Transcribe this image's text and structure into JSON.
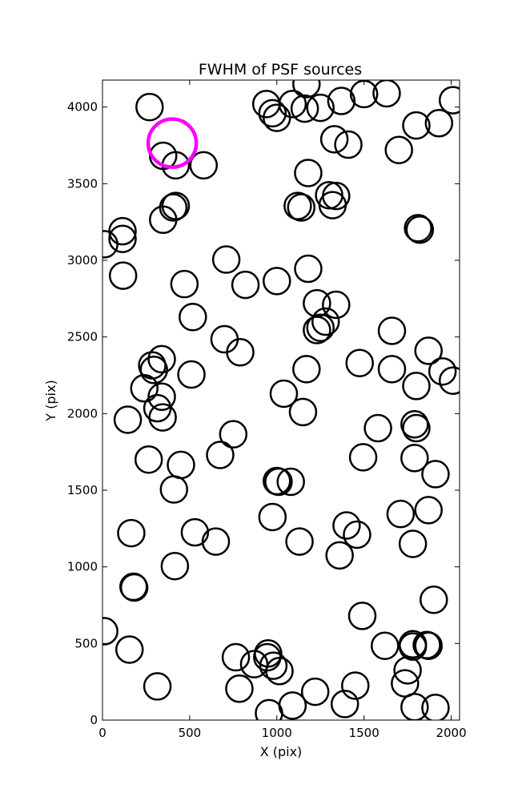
{
  "chart_data": {
    "type": "scatter",
    "title": "FWHM of PSF sources",
    "xlabel": "X (pix)",
    "ylabel": "Y (pix)",
    "xlim": [
      0,
      2048
    ],
    "ylim": [
      0,
      4176
    ],
    "x_ticks": [
      "0",
      "500",
      "1000",
      "1500",
      "2000"
    ],
    "y_ticks": [
      "0",
      "500",
      "1000",
      "1500",
      "2000",
      "2500",
      "3000",
      "3500",
      "4000"
    ],
    "grid": false,
    "marker": "open-circle",
    "colors": {
      "source": "#000000",
      "highlight": "#ff00ff"
    },
    "series": [
      {
        "style": "source",
        "points": [
          [
            270,
            4000
          ],
          [
            348,
            3682
          ],
          [
            420,
            3620
          ],
          [
            580,
            3620
          ],
          [
            420,
            3355
          ],
          [
            406,
            3345
          ],
          [
            348,
            3265
          ],
          [
            115,
            3190
          ],
          [
            115,
            3140
          ],
          [
            10,
            3105
          ],
          [
            118,
            2900
          ],
          [
            470,
            2845
          ],
          [
            518,
            2630
          ],
          [
            710,
            3005
          ],
          [
            820,
            2840
          ],
          [
            1000,
            2865
          ],
          [
            1180,
            2945
          ],
          [
            1230,
            2720
          ],
          [
            1340,
            2710
          ],
          [
            1280,
            2600
          ],
          [
            1250,
            2560
          ],
          [
            1230,
            2545
          ],
          [
            700,
            2485
          ],
          [
            790,
            2400
          ],
          [
            340,
            2355
          ],
          [
            285,
            2315
          ],
          [
            295,
            2285
          ],
          [
            240,
            2165
          ],
          [
            510,
            2255
          ],
          [
            340,
            2110
          ],
          [
            315,
            2035
          ],
          [
            345,
            1975
          ],
          [
            145,
            1960
          ],
          [
            1040,
            2130
          ],
          [
            1150,
            2010
          ],
          [
            1170,
            2290
          ],
          [
            1475,
            2330
          ],
          [
            1660,
            2540
          ],
          [
            1660,
            2290
          ],
          [
            1870,
            2410
          ],
          [
            1950,
            2275
          ],
          [
            2010,
            2215
          ],
          [
            1800,
            2180
          ],
          [
            1580,
            1905
          ],
          [
            1790,
            1930
          ],
          [
            1800,
            1905
          ],
          [
            750,
            1865
          ],
          [
            675,
            1730
          ],
          [
            265,
            1700
          ],
          [
            450,
            1665
          ],
          [
            410,
            1505
          ],
          [
            1495,
            1715
          ],
          [
            1790,
            1710
          ],
          [
            1910,
            1605
          ],
          [
            1000,
            1560
          ],
          [
            1010,
            1555
          ],
          [
            1080,
            1555
          ],
          [
            975,
            1325
          ],
          [
            1400,
            1270
          ],
          [
            1460,
            1210
          ],
          [
            1130,
            1165
          ],
          [
            1360,
            1075
          ],
          [
            1710,
            1345
          ],
          [
            1870,
            1370
          ],
          [
            1780,
            1150
          ],
          [
            530,
            1225
          ],
          [
            650,
            1165
          ],
          [
            165,
            1220
          ],
          [
            415,
            1005
          ],
          [
            178,
            870
          ],
          [
            182,
            865
          ],
          [
            1490,
            680
          ],
          [
            1900,
            785
          ],
          [
            10,
            580
          ],
          [
            155,
            460
          ],
          [
            315,
            220
          ],
          [
            765,
            410
          ],
          [
            785,
            205
          ],
          [
            870,
            365
          ],
          [
            950,
            435
          ],
          [
            945,
            410
          ],
          [
            980,
            355
          ],
          [
            1015,
            320
          ],
          [
            955,
            45
          ],
          [
            1090,
            95
          ],
          [
            1220,
            185
          ],
          [
            1390,
            105
          ],
          [
            1450,
            225
          ],
          [
            1620,
            485
          ],
          [
            1780,
            495
          ],
          [
            1780,
            480
          ],
          [
            1860,
            490
          ],
          [
            1870,
            485
          ],
          [
            1750,
            325
          ],
          [
            1735,
            240
          ],
          [
            1790,
            85
          ],
          [
            1910,
            80
          ],
          [
            940,
            4020
          ],
          [
            975,
            3960
          ],
          [
            1000,
            3930
          ],
          [
            1090,
            4020
          ],
          [
            1160,
            3990
          ],
          [
            1170,
            4150
          ],
          [
            1250,
            3995
          ],
          [
            1370,
            4040
          ],
          [
            1500,
            4085
          ],
          [
            1630,
            4090
          ],
          [
            2010,
            4045
          ],
          [
            1330,
            3790
          ],
          [
            1410,
            3755
          ],
          [
            1700,
            3720
          ],
          [
            1800,
            3880
          ],
          [
            1930,
            3895
          ],
          [
            1180,
            3570
          ],
          [
            1120,
            3355
          ],
          [
            1140,
            3345
          ],
          [
            1300,
            3425
          ],
          [
            1340,
            3420
          ],
          [
            1320,
            3360
          ],
          [
            1810,
            3210
          ],
          [
            1820,
            3200
          ]
        ]
      },
      {
        "style": "highlight",
        "points": [
          [
            400,
            3765
          ]
        ]
      }
    ]
  }
}
